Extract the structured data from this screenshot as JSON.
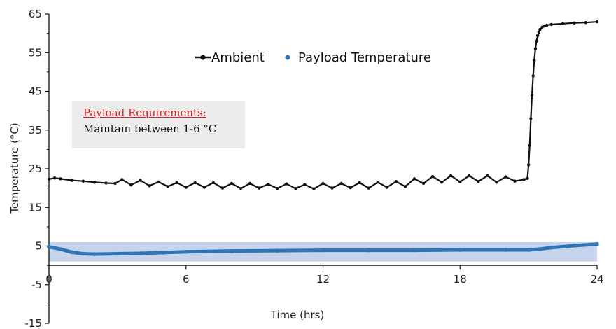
{
  "chart_data": {
    "type": "line",
    "xlabel": "Time (hrs)",
    "ylabel": "Temperature (°C)",
    "xlim": [
      0,
      24
    ],
    "ylim": [
      -15,
      65
    ],
    "xticks": [
      "0",
      "6",
      "12",
      "18",
      "24"
    ],
    "yticks": [
      "-15",
      "-5",
      "5",
      "15",
      "25",
      "35",
      "45",
      "55",
      "65"
    ],
    "legend_position": "top-center",
    "band": {
      "low": 1,
      "high": 6,
      "color": "#c5d3ec"
    },
    "annotation": {
      "title": "Payload Requirements:",
      "text": "Maintain between 1-6 °C",
      "title_color": "#d8242b"
    },
    "series": [
      {
        "name": "Ambient",
        "color": "#111111",
        "marker": "dot",
        "x": [
          0,
          0.25,
          0.5,
          1,
          1.5,
          2,
          2.5,
          2.9,
          3.2,
          3.6,
          4,
          4.4,
          4.8,
          5.2,
          5.6,
          6,
          6.4,
          6.8,
          7.2,
          7.6,
          8,
          8.4,
          8.8,
          9.2,
          9.6,
          10,
          10.4,
          10.8,
          11.2,
          11.6,
          12,
          12.4,
          12.8,
          13.2,
          13.6,
          14,
          14.4,
          14.8,
          15.2,
          15.6,
          16,
          16.4,
          16.8,
          17.2,
          17.6,
          18,
          18.4,
          18.8,
          19.2,
          19.6,
          20,
          20.4,
          20.8,
          20.95,
          21,
          21.05,
          21.1,
          21.15,
          21.2,
          21.25,
          21.3,
          21.35,
          21.4,
          21.45,
          21.5,
          21.6,
          21.7,
          21.8,
          22,
          22.5,
          23,
          23.5,
          24
        ],
        "y": [
          22.3,
          22.6,
          22.4,
          22,
          21.8,
          21.5,
          21.3,
          21.2,
          22.2,
          20.8,
          22,
          20.6,
          21.6,
          20.4,
          21.4,
          20.2,
          21.4,
          20.2,
          21.4,
          20,
          21.2,
          19.9,
          21.2,
          20,
          21,
          19.9,
          21.1,
          19.9,
          20.9,
          19.8,
          21.2,
          20,
          21.2,
          20.1,
          21.4,
          20,
          21.5,
          20.2,
          21.7,
          20.4,
          22.4,
          21.2,
          23,
          21.5,
          23.2,
          21.6,
          23.2,
          21.7,
          23.2,
          21.5,
          22.9,
          21.8,
          22.2,
          22.5,
          26,
          31,
          38,
          44,
          49,
          53,
          56,
          58,
          59.4,
          60.3,
          61,
          61.6,
          61.9,
          62.1,
          62.3,
          62.5,
          62.7,
          62.8,
          63
        ]
      },
      {
        "name": "Payload Temperature",
        "color": "#2f74b5",
        "marker": "dot",
        "x": [
          0,
          0.5,
          1,
          1.5,
          2,
          3,
          4,
          5,
          6,
          8,
          10,
          12,
          14,
          16,
          18,
          20,
          21,
          21.5,
          22,
          23,
          24
        ],
        "y": [
          4.8,
          4.2,
          3.4,
          3.0,
          2.9,
          3.0,
          3.1,
          3.3,
          3.5,
          3.7,
          3.8,
          3.9,
          3.9,
          3.9,
          4.0,
          4.0,
          4.0,
          4.2,
          4.6,
          5.1,
          5.5
        ]
      }
    ]
  }
}
